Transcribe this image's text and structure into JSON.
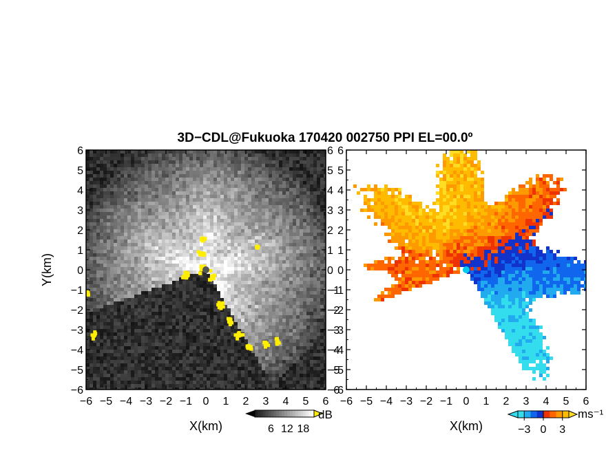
{
  "title": "3D−CDL@Fukuoka 170420 002750 PPI EL=00.0º",
  "colors": {
    "yellow_overlay": "#ffee00",
    "radar_center_left": "#555555",
    "radar_center_right": "#00ccee",
    "background_noise": "#222222"
  },
  "chart_data": [
    {
      "type": "heatmap",
      "name": "reflectivity-ppi",
      "xlabel": "X(km)",
      "ylabel": "Y(km)",
      "xlim": [
        -6,
        6
      ],
      "ylim": [
        -6,
        6
      ],
      "xticks": [
        "−6",
        "−5",
        "−4",
        "−3",
        "−2",
        "−1",
        "0",
        "1",
        "2",
        "3",
        "4",
        "5",
        "6"
      ],
      "yticks": [
        "6",
        "5",
        "4",
        "3",
        "2",
        "1",
        "0",
        "−1",
        "−2",
        "−3",
        "−4",
        "−5",
        "−6"
      ],
      "colorbar": {
        "unit": "dB",
        "ticks": [
          "6",
          "12",
          "18"
        ],
        "range": [
          0,
          22
        ],
        "colormap": "grayscale"
      },
      "sector_no_data": {
        "from_deg": 200,
        "to_deg": 300
      },
      "max_range_km": 6.5
    },
    {
      "type": "heatmap",
      "name": "doppler-velocity-ppi",
      "xlabel": "X(km)",
      "ylabel": "",
      "xlim": [
        -6,
        6
      ],
      "ylim": [
        -6,
        6
      ],
      "xticks": [
        "−6",
        "−5",
        "−4",
        "−3",
        "−2",
        "−1",
        "0",
        "1",
        "2",
        "3",
        "4",
        "5",
        "6"
      ],
      "yticks": [
        "6",
        "5",
        "4",
        "3",
        "2",
        "1",
        "0",
        "−1",
        "−2",
        "−3",
        "−4",
        "−5",
        "−6"
      ],
      "colorbar": {
        "unit": "ms⁻¹",
        "ticks": [
          "−3",
          "0",
          "3"
        ],
        "range": [
          -4,
          4
        ],
        "colormap": "cyan-blue-red-orange-yellow"
      },
      "sector_no_data": {
        "from_deg": 200,
        "to_deg": 300
      },
      "max_range_km": 5.8
    }
  ]
}
